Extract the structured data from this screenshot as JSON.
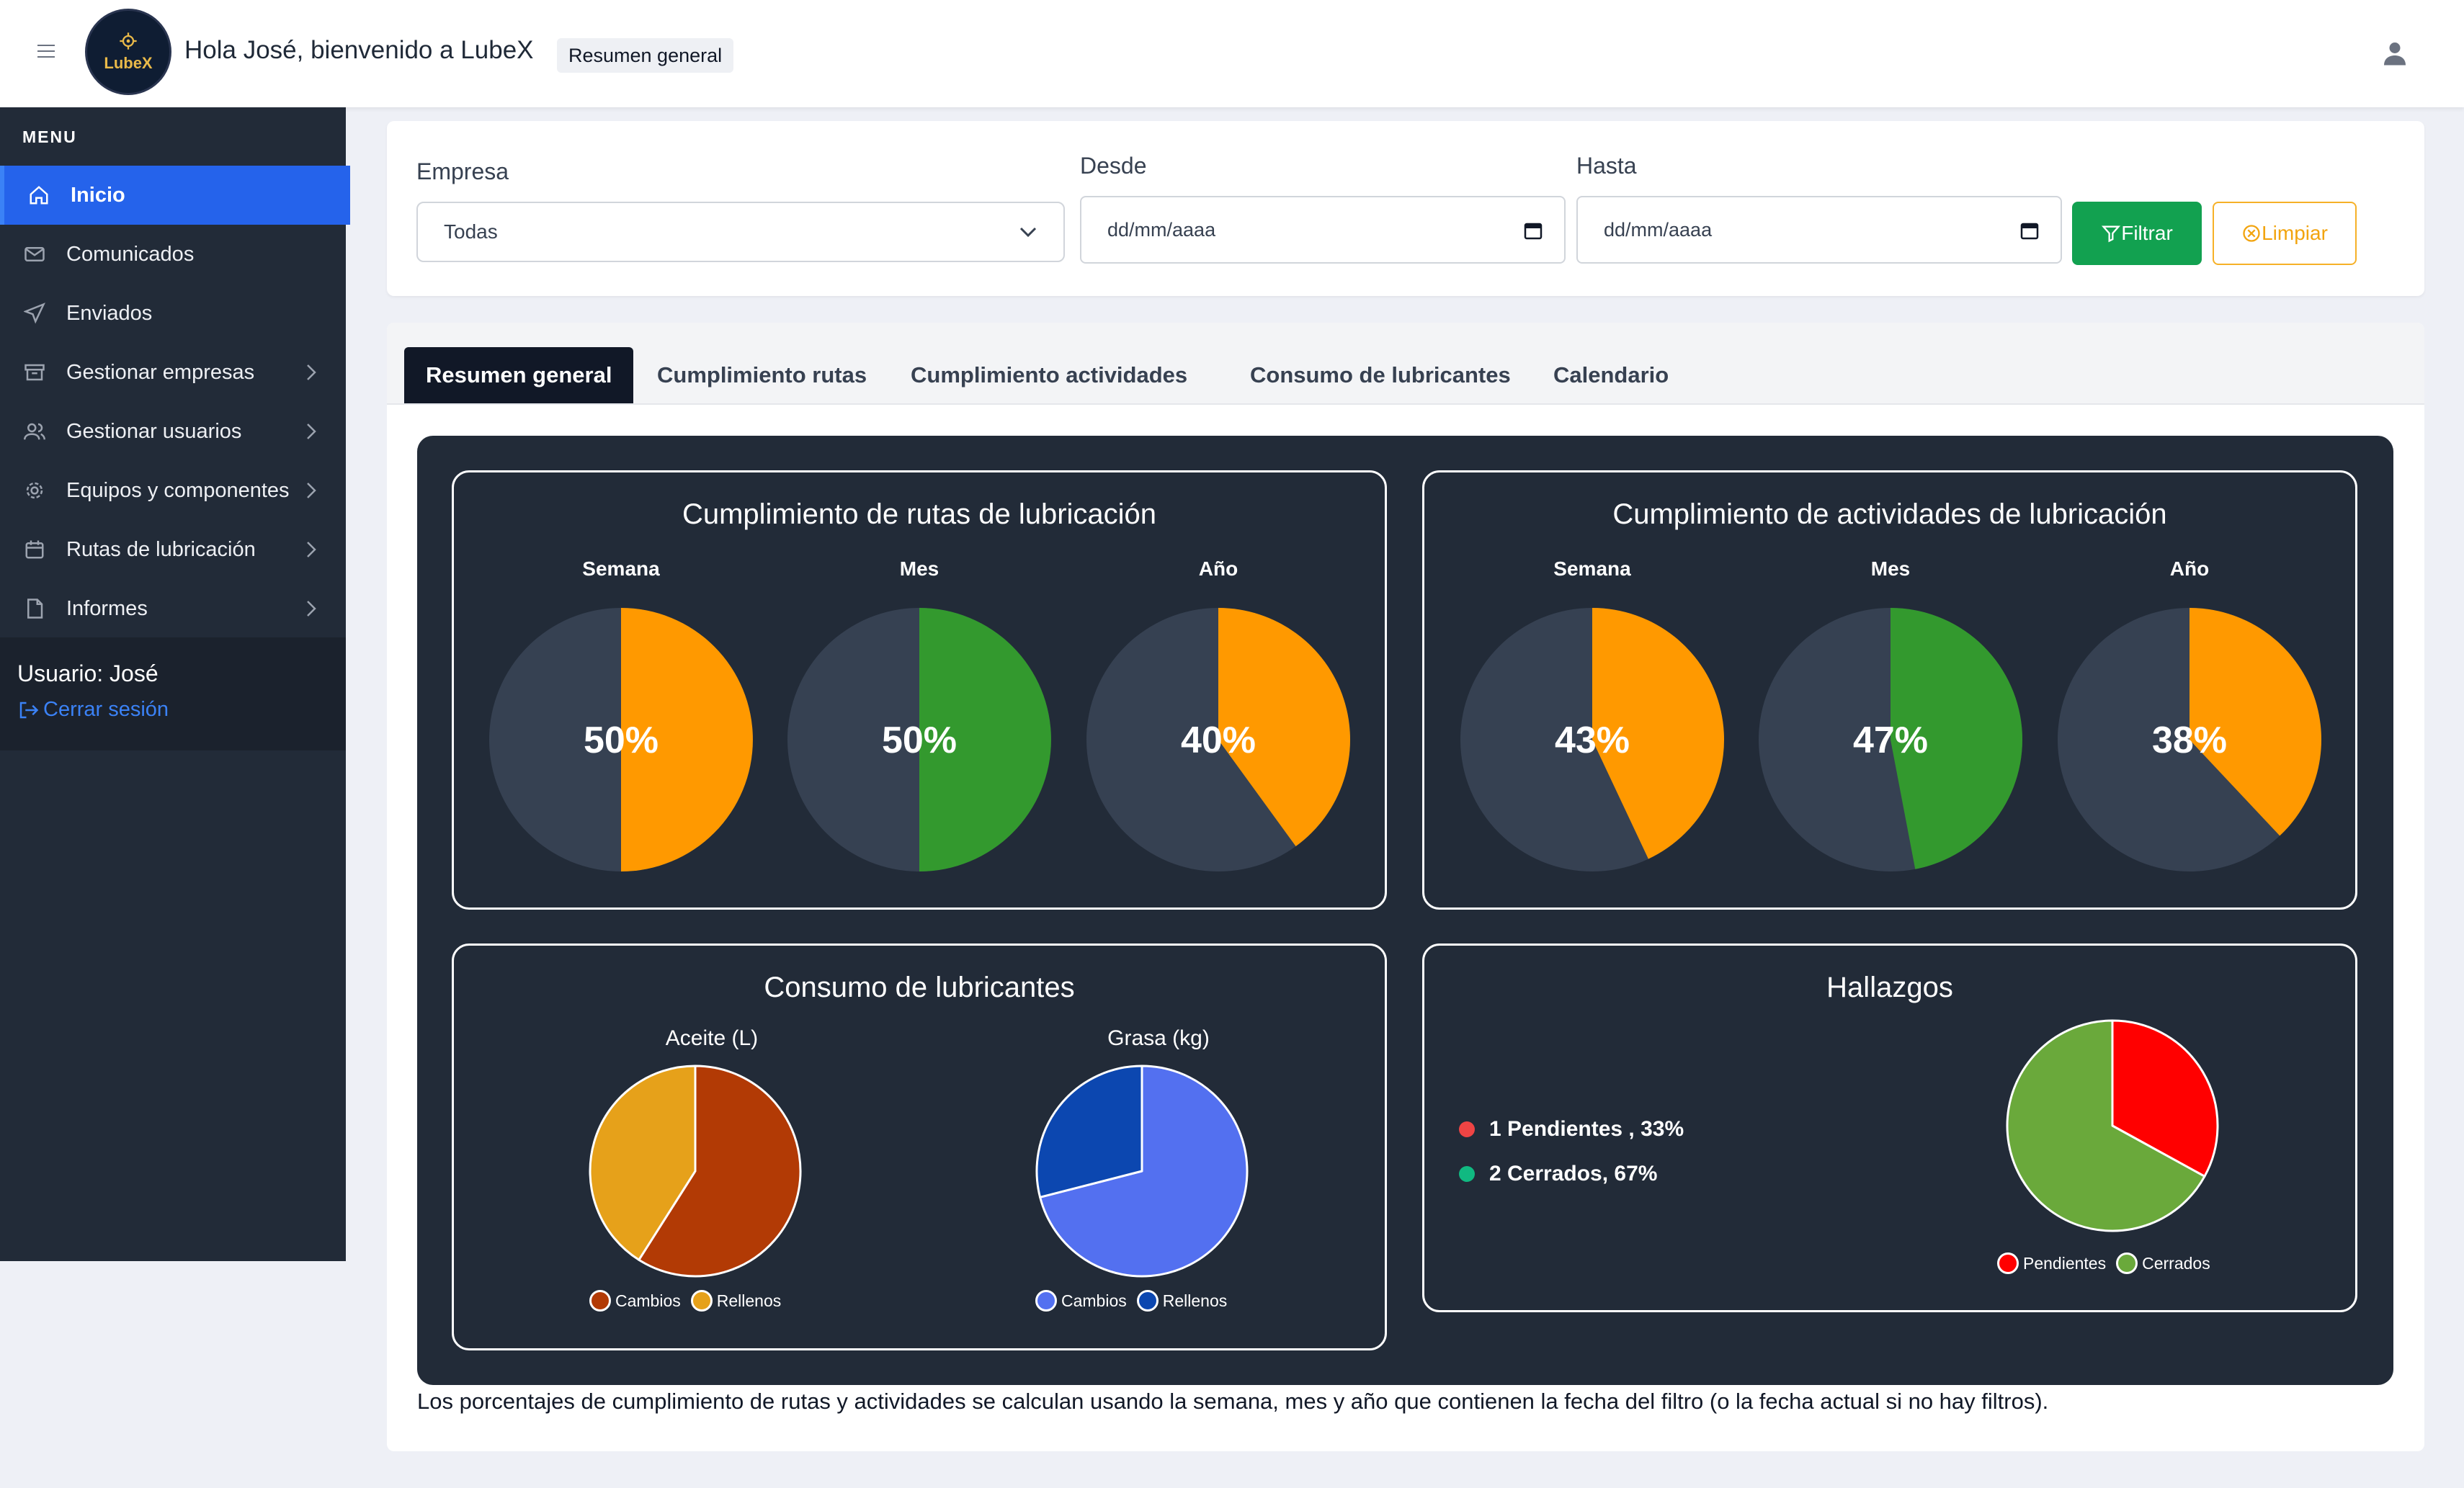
{
  "header": {
    "greeting": "Hola José, bienvenido a LubeX",
    "breadcrumb": "Resumen general",
    "logo_text": "LubeX"
  },
  "sidebar": {
    "menu_label": "MENU",
    "items": [
      {
        "label": "Inicio",
        "icon": "home-icon",
        "active": true
      },
      {
        "label": "Comunicados",
        "icon": "envelope-icon"
      },
      {
        "label": "Enviados",
        "icon": "send-icon"
      },
      {
        "label": "Gestionar empresas",
        "icon": "archive-icon",
        "has_submenu": true
      },
      {
        "label": "Gestionar usuarios",
        "icon": "users-icon",
        "has_submenu": true
      },
      {
        "label": "Equipos y componentes",
        "icon": "gear-icon",
        "has_submenu": true
      },
      {
        "label": "Rutas de lubricación",
        "icon": "calendar-icon",
        "has_submenu": true
      },
      {
        "label": "Informes",
        "icon": "document-icon",
        "has_submenu": true
      }
    ],
    "user_label": "Usuario: José",
    "logout_label": "Cerrar sesión"
  },
  "filters": {
    "empresa_label": "Empresa",
    "empresa_value": "Todas",
    "desde_label": "Desde",
    "desde_placeholder": "dd/mm/aaaa",
    "hasta_label": "Hasta",
    "hasta_placeholder": "dd/mm/aaaa",
    "filtrar_label": "Filtrar",
    "limpiar_label": "Limpiar"
  },
  "tabs": [
    "Resumen general",
    "Cumplimiento rutas",
    "Cumplimiento actividades",
    "Consumo de lubricantes",
    "Calendario"
  ],
  "colors": {
    "orange": "#ff9900",
    "green": "#33992e",
    "remainder": "#364152",
    "cambios_oil": "#b23a05",
    "rellenos_oil": "#e6a11a",
    "cambios_grasa": "#5370f0",
    "rellenos_grasa": "#0c47b0",
    "pendientes": "#ff0000",
    "cerrados": "#6aa93b"
  },
  "chart_data": [
    {
      "type": "pie",
      "title": "Cumplimiento de rutas de lubricación",
      "categories": [
        "Semana",
        "Mes",
        "Año"
      ],
      "values": [
        50,
        50,
        40
      ],
      "labels": [
        "50%",
        "50%",
        "40%"
      ],
      "fill_colors": [
        "orange",
        "green",
        "orange"
      ]
    },
    {
      "type": "pie",
      "title": "Cumplimiento de actividades de lubricación",
      "categories": [
        "Semana",
        "Mes",
        "Año"
      ],
      "values": [
        43,
        47,
        38
      ],
      "labels": [
        "43%",
        "47%",
        "38%"
      ],
      "fill_colors": [
        "orange",
        "green",
        "orange"
      ]
    },
    {
      "type": "pie",
      "title": "Consumo de lubricantes",
      "charts": [
        {
          "subtitle": "Aceite (L)",
          "series": [
            {
              "name": "Cambios",
              "value": 59
            },
            {
              "name": "Rellenos",
              "value": 41
            }
          ]
        },
        {
          "subtitle": "Grasa (kg)",
          "series": [
            {
              "name": "Cambios",
              "value": 71
            },
            {
              "name": "Rellenos",
              "value": 29
            }
          ]
        }
      ],
      "legend": [
        "Cambios",
        "Rellenos"
      ]
    },
    {
      "type": "pie",
      "title": "Hallazgos",
      "series": [
        {
          "name": "Pendientes",
          "count": 1,
          "percent": 33,
          "label": "1 Pendientes , 33%"
        },
        {
          "name": "Cerrados",
          "count": 2,
          "percent": 67,
          "label": "2 Cerrados, 67%"
        }
      ],
      "legend": [
        "Pendientes",
        "Cerrados"
      ]
    }
  ],
  "footnote": "Los porcentajes de cumplimiento de rutas y actividades se calculan usando la semana, mes y año que contienen la fecha del filtro (o la fecha actual si no hay filtros)."
}
